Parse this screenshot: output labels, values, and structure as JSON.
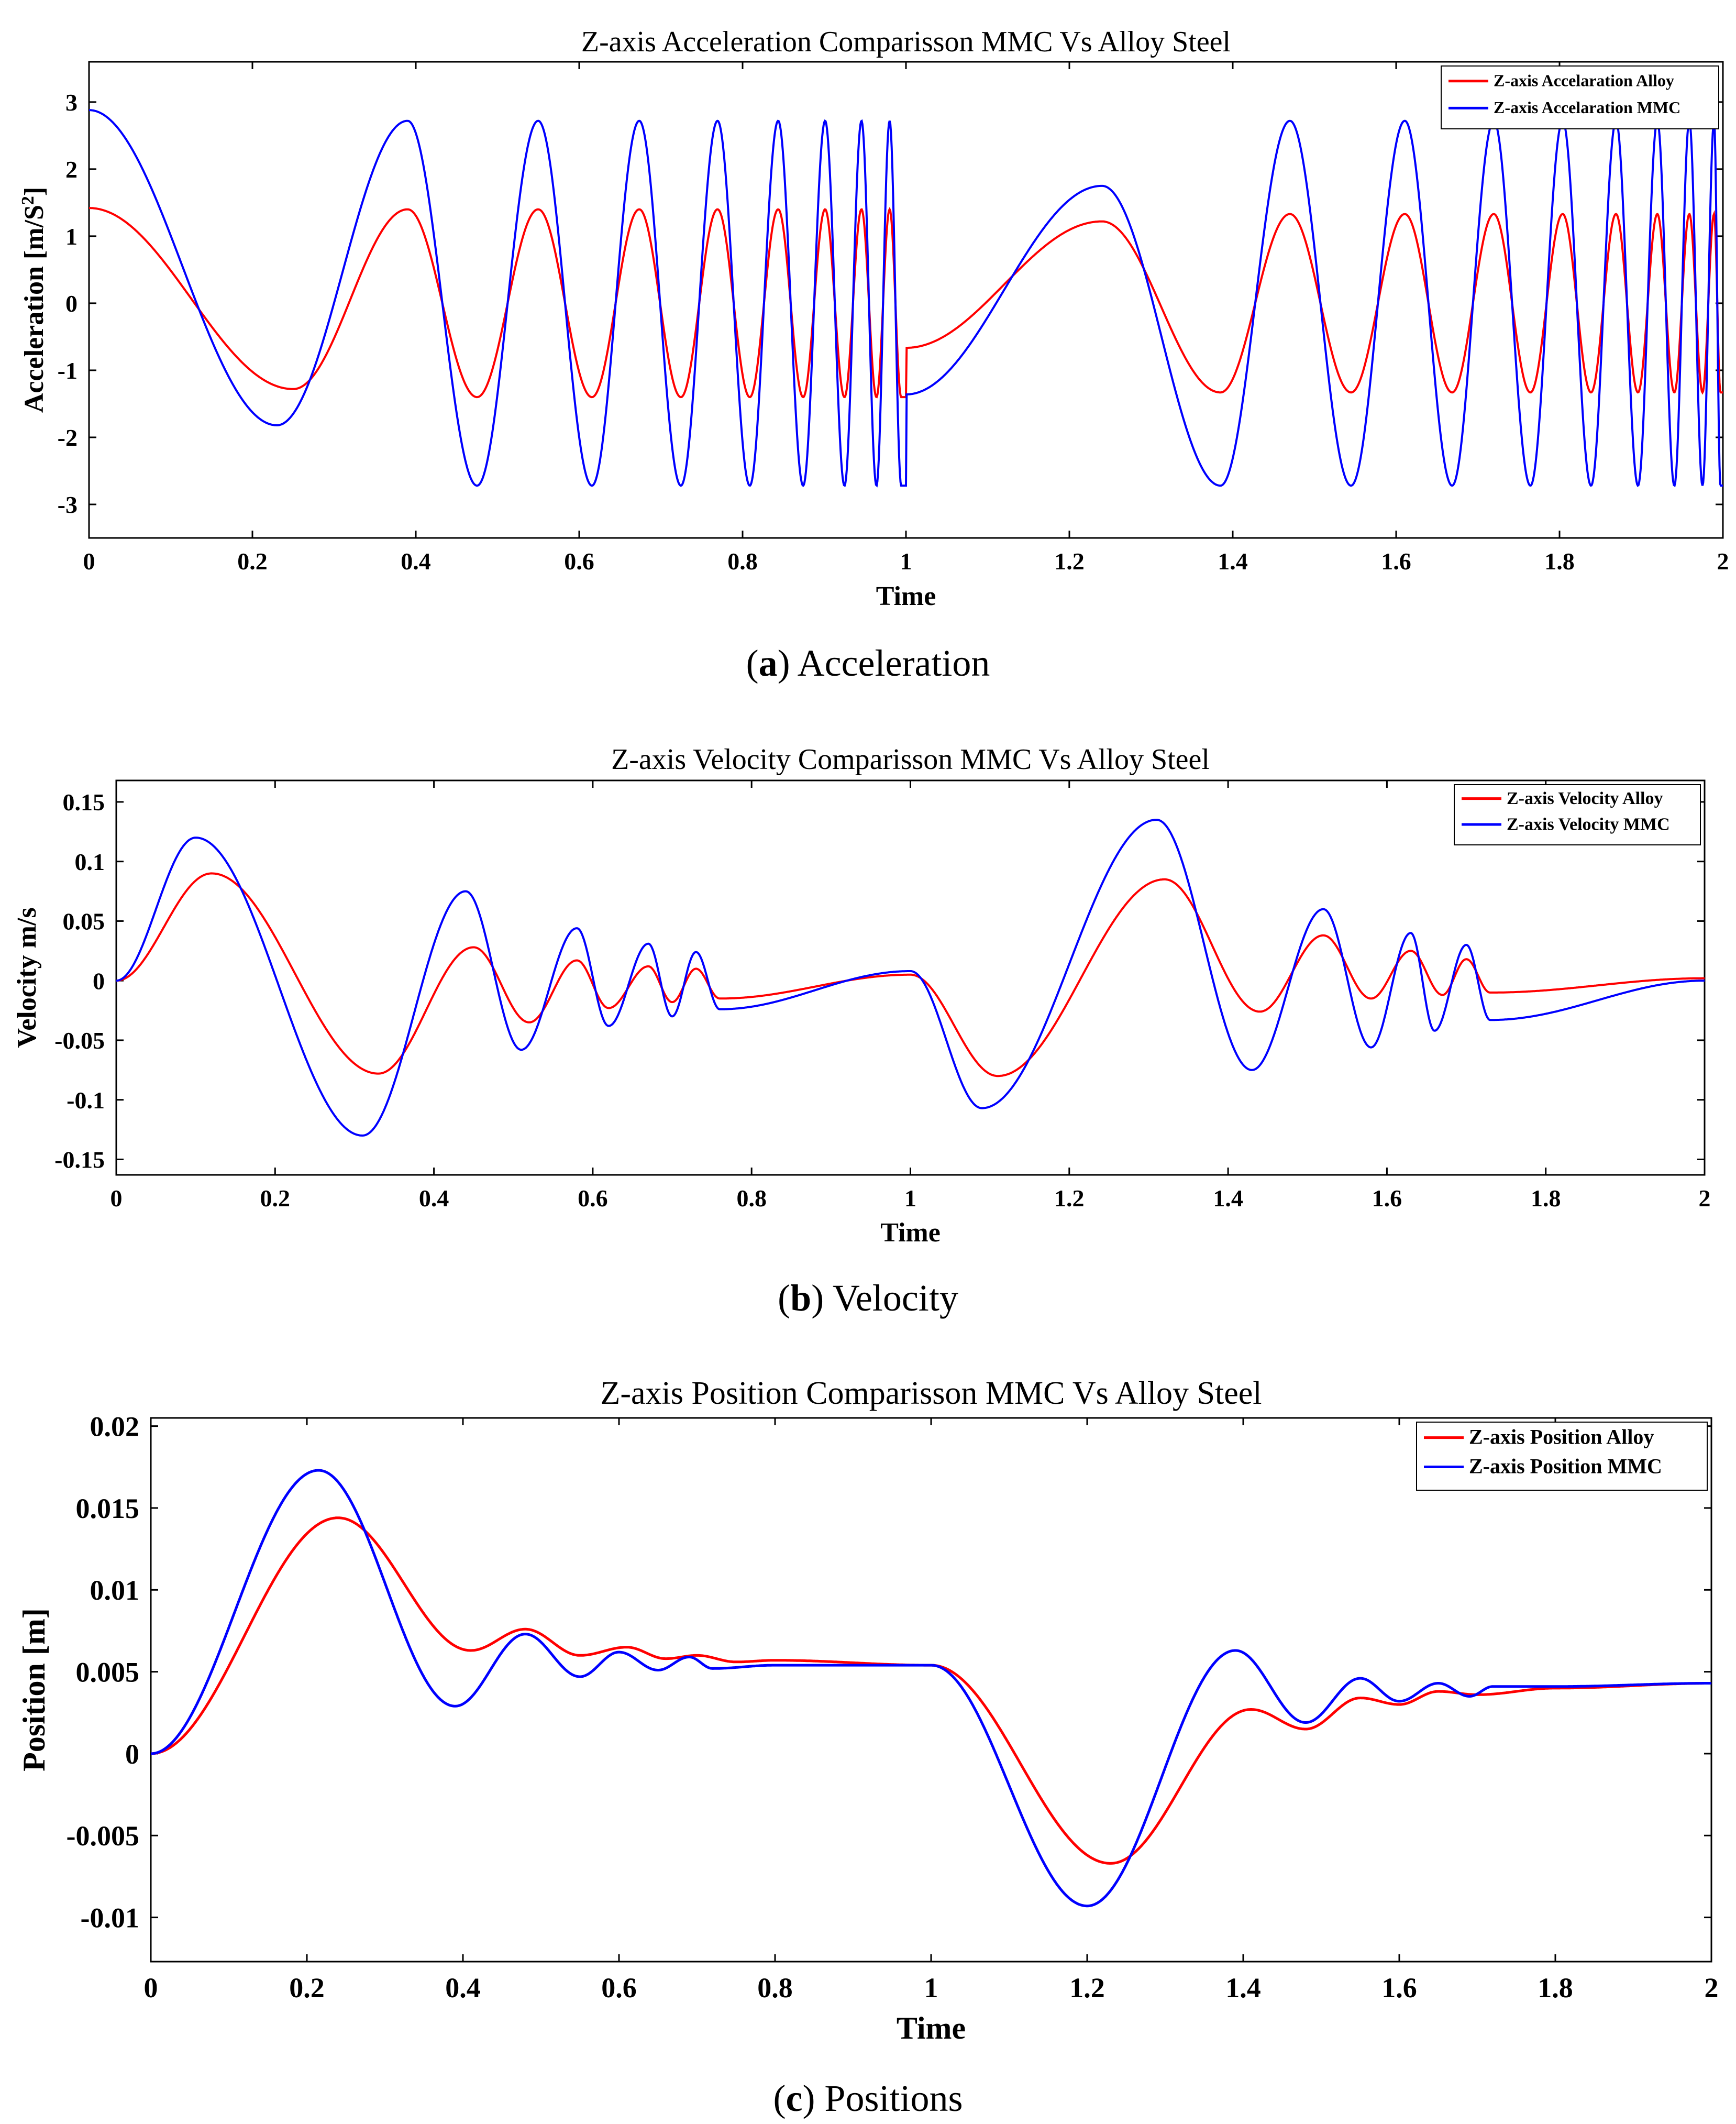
{
  "chart_data": [
    {
      "id": "acceleration",
      "type": "line",
      "title": "Z-axis Acceleration Comparisson MMC Vs Alloy Steel",
      "xlabel": "Time",
      "ylabel": "Acceleration [m/S",
      "ylabel_sup": "2",
      "ylabel_end": "]",
      "xlim": [
        0,
        2
      ],
      "ylim": [
        -3.5,
        3.6
      ],
      "xticks": [
        0,
        0.2,
        0.4,
        0.6,
        0.8,
        1,
        1.2,
        1.4,
        1.6,
        1.8,
        2
      ],
      "xtick_labels": [
        "0",
        "0.2",
        "0.4",
        "0.6",
        "0.8",
        "1",
        "1.2",
        "1.4",
        "1.6",
        "1.8",
        "2"
      ],
      "yticks": [
        -3,
        -2,
        -1,
        0,
        1,
        2,
        3
      ],
      "ytick_labels": [
        "-3",
        "-2",
        "-1",
        "0",
        "1",
        "2",
        "3"
      ],
      "legend_position": "top-right",
      "caption_label": "a",
      "caption_text": "Acceleration",
      "series": [
        {
          "name": "Z-axis Accelaration Alloy",
          "color": "#ff0000",
          "model": {
            "kind": "accel",
            "amp_first": 1.4,
            "amp_second": 1.33,
            "phase": 1.5708,
            "taper_first_half": [
              1.42,
              -1.3
            ],
            "taper_first_peak": [
              0.25,
              -1.28
            ],
            "peaks": [
              [
                0.4,
                1.45
              ],
              [
                0.48,
                -1.35
              ],
              [
                0.55,
                1.42
              ],
              [
                1.24,
                1.22
              ],
              [
                1.39,
                -1.48
              ]
            ]
          }
        },
        {
          "name": "Z-axis Accelaration MMC",
          "color": "#0000ff",
          "model": {
            "kind": "accel",
            "amp_first": 2.72,
            "amp_second": 2.72,
            "phase": 1.5708,
            "taper_first_half": [
              2.88,
              -1.82
            ],
            "taper_first_peak": [
              0.23,
              -1.82
            ],
            "peaks": [
              [
                0.39,
                2.62
              ],
              [
                0.48,
                -2.7
              ],
              [
                1.22,
                1.75
              ],
              [
                1.38,
                -2.62
              ]
            ]
          }
        }
      ]
    },
    {
      "id": "velocity",
      "type": "line",
      "title": "Z-axis Velocity Comparisson MMC Vs Alloy Steel",
      "xlabel": "Time",
      "ylabel": "Velocity m/s",
      "xlim": [
        0,
        2
      ],
      "ylim": [
        -0.163,
        0.168
      ],
      "xticks": [
        0,
        0.2,
        0.4,
        0.6,
        0.8,
        1,
        1.2,
        1.4,
        1.6,
        1.8,
        2
      ],
      "xtick_labels": [
        "0",
        "0.2",
        "0.4",
        "0.6",
        "0.8",
        "1",
        "1.2",
        "1.4",
        "1.6",
        "1.8",
        "2"
      ],
      "yticks": [
        -0.15,
        -0.1,
        -0.05,
        0,
        0.05,
        0.1,
        0.15
      ],
      "ytick_labels": [
        "-0.15",
        "-0.1",
        "-0.05",
        "0",
        "0.05",
        "0.1",
        "0.15"
      ],
      "legend_position": "top-right",
      "caption_label": "b",
      "caption_text": "Velocity",
      "series": [
        {
          "name": "Z-axis Velocity Alloy",
          "color": "#ff0000",
          "points_first": [
            [
              0,
              0
            ],
            [
              0.12,
              0.09
            ],
            [
              0.33,
              -0.078
            ],
            [
              0.45,
              0.028
            ],
            [
              0.52,
              -0.035
            ],
            [
              0.58,
              0.017
            ],
            [
              0.62,
              -0.023
            ],
            [
              0.67,
              0.012
            ],
            [
              0.7,
              -0.018
            ],
            [
              0.73,
              0.01
            ],
            [
              0.76,
              -0.015
            ],
            [
              1.0,
              0.005
            ]
          ],
          "points_second": [
            [
              1.0,
              0.005
            ],
            [
              1.11,
              -0.08
            ],
            [
              1.32,
              0.085
            ],
            [
              1.44,
              -0.026
            ],
            [
              1.52,
              0.038
            ],
            [
              1.58,
              -0.015
            ],
            [
              1.63,
              0.025
            ],
            [
              1.67,
              -0.012
            ],
            [
              1.7,
              0.018
            ],
            [
              1.73,
              -0.01
            ],
            [
              2.0,
              0.002
            ]
          ]
        },
        {
          "name": "Z-axis Velocity MMC",
          "color": "#0000ff",
          "points_first": [
            [
              0,
              0
            ],
            [
              0.1,
              0.12
            ],
            [
              0.31,
              -0.13
            ],
            [
              0.44,
              0.075
            ],
            [
              0.51,
              -0.058
            ],
            [
              0.58,
              0.044
            ],
            [
              0.62,
              -0.038
            ],
            [
              0.67,
              0.031
            ],
            [
              0.7,
              -0.03
            ],
            [
              0.73,
              0.024
            ],
            [
              0.76,
              -0.024
            ],
            [
              1.0,
              0.008
            ]
          ],
          "points_second": [
            [
              1.0,
              0.008
            ],
            [
              1.09,
              -0.107
            ],
            [
              1.31,
              0.135
            ],
            [
              1.43,
              -0.075
            ],
            [
              1.52,
              0.06
            ],
            [
              1.58,
              -0.056
            ],
            [
              1.63,
              0.04
            ],
            [
              1.66,
              -0.042
            ],
            [
              1.7,
              0.03
            ],
            [
              1.73,
              -0.033
            ],
            [
              2.0,
              0.0
            ]
          ]
        }
      ]
    },
    {
      "id": "position",
      "type": "line",
      "title": "Z-axis Position Comparisson MMC Vs Alloy Steel",
      "xlabel": "Time",
      "ylabel": "Position [m]",
      "xlim": [
        0,
        2
      ],
      "ylim": [
        -0.0127,
        0.0205
      ],
      "xticks": [
        0,
        0.2,
        0.4,
        0.6,
        0.8,
        1,
        1.2,
        1.4,
        1.6,
        1.8,
        2
      ],
      "xtick_labels": [
        "0",
        "0.2",
        "0.4",
        "0.6",
        "0.8",
        "1",
        "1.2",
        "1.4",
        "1.6",
        "1.8",
        "2"
      ],
      "yticks": [
        -0.01,
        -0.005,
        0,
        0.005,
        0.01,
        0.015,
        0.02
      ],
      "ytick_labels": [
        "-0.01",
        "-0.005",
        "0",
        "0.005",
        "0.01",
        "0.015",
        "0.02"
      ],
      "legend_position": "top-right",
      "caption_label": "c",
      "caption_text": "Positions",
      "series": [
        {
          "name": "Z-axis Position Alloy",
          "color": "#ff0000",
          "points": [
            [
              0,
              0
            ],
            [
              0.24,
              0.0144
            ],
            [
              0.41,
              0.0063
            ],
            [
              0.48,
              0.0076
            ],
            [
              0.55,
              0.006
            ],
            [
              0.61,
              0.0065
            ],
            [
              0.66,
              0.0058
            ],
            [
              0.7,
              0.006
            ],
            [
              0.75,
              0.0056
            ],
            [
              0.8,
              0.0057
            ],
            [
              1.0,
              0.0054
            ],
            [
              1.23,
              -0.0067
            ],
            [
              1.41,
              0.0027
            ],
            [
              1.48,
              0.0015
            ],
            [
              1.55,
              0.0034
            ],
            [
              1.6,
              0.003
            ],
            [
              1.65,
              0.0038
            ],
            [
              1.7,
              0.0036
            ],
            [
              1.8,
              0.004
            ],
            [
              2.0,
              0.0043
            ]
          ]
        },
        {
          "name": "Z-axis Position MMC",
          "color": "#0000ff",
          "points": [
            [
              0,
              0
            ],
            [
              0.215,
              0.0173
            ],
            [
              0.39,
              0.0029
            ],
            [
              0.48,
              0.0073
            ],
            [
              0.55,
              0.0047
            ],
            [
              0.6,
              0.0062
            ],
            [
              0.65,
              0.0051
            ],
            [
              0.69,
              0.0059
            ],
            [
              0.72,
              0.0052
            ],
            [
              0.8,
              0.0054
            ],
            [
              1.0,
              0.0054
            ],
            [
              1.2,
              -0.0093
            ],
            [
              1.39,
              0.0063
            ],
            [
              1.48,
              0.0019
            ],
            [
              1.55,
              0.0046
            ],
            [
              1.6,
              0.0032
            ],
            [
              1.65,
              0.0043
            ],
            [
              1.69,
              0.0035
            ],
            [
              1.72,
              0.0041
            ],
            [
              1.8,
              0.0041
            ],
            [
              2.0,
              0.0043
            ]
          ]
        }
      ]
    }
  ]
}
